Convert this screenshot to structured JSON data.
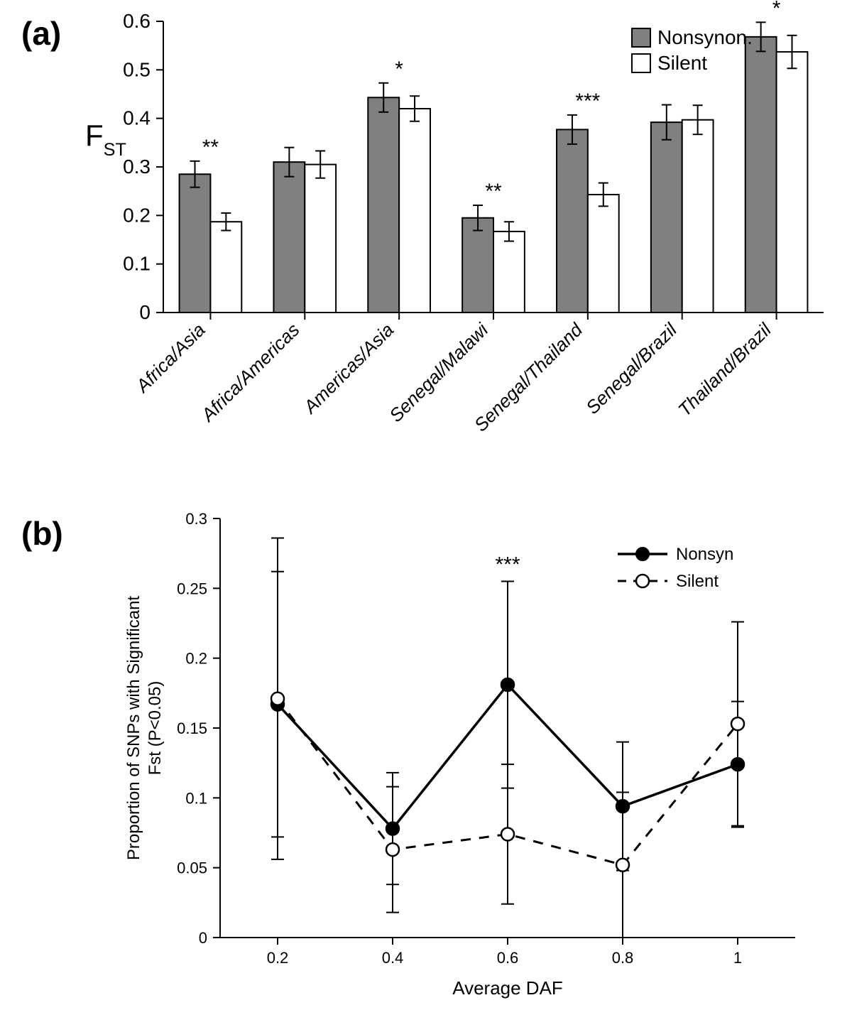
{
  "panel_labels": {
    "a": "(a)",
    "b": "(b)"
  },
  "chart_a": {
    "type": "bar",
    "y_axis": {
      "label": "F",
      "label_sub": "ST",
      "min": 0,
      "max": 0.6,
      "tick_step": 0.1,
      "ticks": [
        0,
        0.1,
        0.2,
        0.3,
        0.4,
        0.5,
        0.6
      ],
      "fontsize": 28,
      "label_fontsize": 42
    },
    "categories": [
      "Africa/Asia",
      "Africa/Americas",
      "Americas/Asia",
      "Senegal/Malawi",
      "Senegal/Thailand",
      "Senegal/Brazil",
      "Thailand/Brazil"
    ],
    "series": [
      {
        "name": "Nonsynon.",
        "color": "#808080",
        "values": [
          0.285,
          0.31,
          0.443,
          0.195,
          0.377,
          0.392,
          0.568
        ]
      },
      {
        "name": "Silent",
        "color": "#ffffff",
        "values": [
          0.187,
          0.305,
          0.42,
          0.167,
          0.243,
          0.397,
          0.537
        ]
      }
    ],
    "error_bars": {
      "nonsynon": [
        0.027,
        0.03,
        0.03,
        0.026,
        0.03,
        0.036,
        0.03
      ],
      "silent": [
        0.018,
        0.028,
        0.026,
        0.02,
        0.024,
        0.03,
        0.034
      ]
    },
    "significance": [
      "**",
      "",
      "*",
      "**",
      "***",
      "",
      "*"
    ],
    "bar_colors": {
      "nonsynon": "#808080",
      "silent": "#ffffff",
      "border": "#000000"
    },
    "background_color": "#ffffff",
    "axis_color": "#000000",
    "x_fontsize": 26,
    "sig_fontsize": 30,
    "legend": {
      "items": [
        "Nonsynon.",
        "Silent"
      ],
      "colors": [
        "#808080",
        "#ffffff"
      ],
      "fontsize": 28,
      "position": "top-right"
    }
  },
  "chart_b": {
    "type": "line",
    "x_axis": {
      "label": "Average DAF",
      "ticks": [
        0.2,
        0.4,
        0.6,
        0.8,
        1
      ],
      "fontsize": 22,
      "label_fontsize": 26
    },
    "y_axis": {
      "label": "Proportion of SNPs with Significant\nFst (P<0.05)",
      "min": 0,
      "max": 0.3,
      "tick_step": 0.05,
      "ticks": [
        0,
        0.05,
        0.1,
        0.15,
        0.2,
        0.25,
        0.3
      ],
      "fontsize": 22,
      "label_fontsize": 24
    },
    "series": [
      {
        "name": "Nonsyn",
        "marker": "filled-circle",
        "marker_color": "#000000",
        "line_style": "solid",
        "line_width": 3.5,
        "values": [
          0.167,
          0.078,
          0.181,
          0.094,
          0.124
        ],
        "errors": [
          0.095,
          0.04,
          0.074,
          0.046,
          0.045
        ]
      },
      {
        "name": "Silent",
        "marker": "open-circle",
        "marker_color": "#ffffff",
        "marker_border": "#000000",
        "line_style": "dashed",
        "line_width": 3,
        "values": [
          0.171,
          0.063,
          0.074,
          0.052,
          0.153
        ],
        "errors": [
          0.115,
          0.045,
          0.05,
          0.052,
          0.073
        ]
      }
    ],
    "significance": [
      "",
      "",
      "***",
      "",
      ""
    ],
    "sig_fontsize": 30,
    "background_color": "#ffffff",
    "axis_color": "#000000",
    "grid_color": "#ffffff",
    "legend": {
      "items": [
        "Nonsyn",
        "Silent"
      ],
      "fontsize": 24,
      "position": "top-right"
    }
  }
}
